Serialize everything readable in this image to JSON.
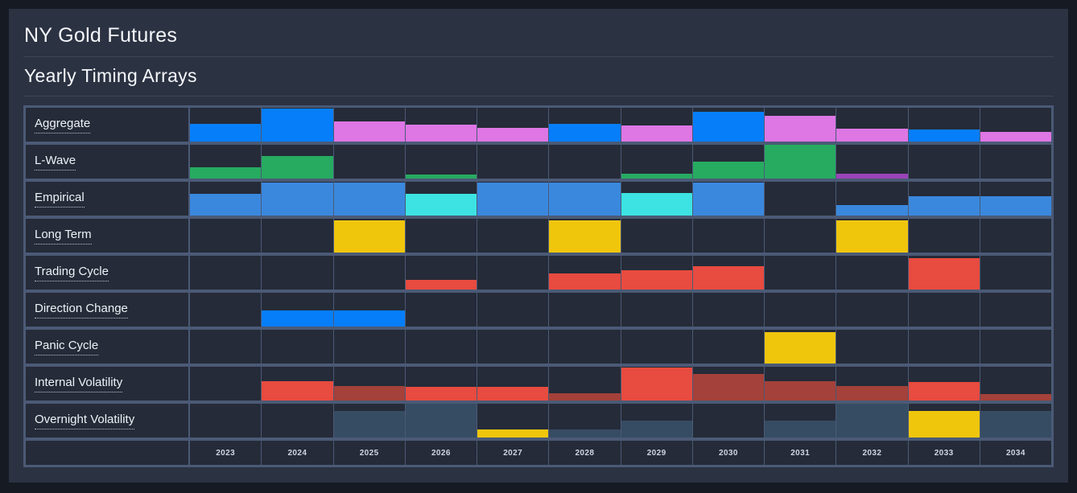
{
  "header": {
    "title": "NY Gold Futures",
    "subtitle": "Yearly Timing Arrays"
  },
  "chart_data": {
    "type": "heatmap",
    "title": "NY Gold Futures",
    "subtitle": "Yearly Timing Arrays",
    "x_categories": [
      "2023",
      "2024",
      "2025",
      "2026",
      "2027",
      "2028",
      "2029",
      "2030",
      "2031",
      "2032",
      "2033",
      "2034"
    ],
    "legend_position": "none",
    "grid": true,
    "bar_alignment": "bottom",
    "cell_format": [
      "color_key",
      "height_fraction_of_row"
    ],
    "colors": {
      "blue": "#077ef9",
      "medblue": "#3a88de",
      "cyan": "#3ce3e2",
      "green": "#27ab61",
      "violet": "#de76e4",
      "purple": "#9b44b8",
      "yellow": "#f0c60d",
      "red": "#e84b3f",
      "darkred": "#a4413a",
      "steel": "#364c63"
    },
    "rows": [
      {
        "id": "aggregate",
        "label": "Aggregate",
        "cells": [
          [
            "blue",
            0.52
          ],
          [
            "blue",
            0.97
          ],
          [
            "violet",
            0.6
          ],
          [
            "violet",
            0.5
          ],
          [
            "violet",
            0.4
          ],
          [
            "blue",
            0.52
          ],
          [
            "violet",
            0.48
          ],
          [
            "blue",
            0.87
          ],
          [
            "violet",
            0.76
          ],
          [
            "violet",
            0.38
          ],
          [
            "blue",
            0.36
          ],
          [
            "violet",
            0.28
          ]
        ]
      },
      {
        "id": "l-wave",
        "label": "L-Wave",
        "cells": [
          [
            "green",
            0.33
          ],
          [
            "green",
            0.67
          ],
          [
            null,
            0
          ],
          [
            "green",
            0.12
          ],
          [
            null,
            0
          ],
          [
            null,
            0
          ],
          [
            "green",
            0.15
          ],
          [
            "green",
            0.49
          ],
          [
            "green",
            1.0
          ],
          [
            "purple",
            0.14
          ],
          [
            null,
            0
          ],
          [
            null,
            0
          ]
        ]
      },
      {
        "id": "empirical",
        "label": "Empirical",
        "cells": [
          [
            "medblue",
            0.65
          ],
          [
            "medblue",
            0.97
          ],
          [
            "medblue",
            0.97
          ],
          [
            "cyan",
            0.65
          ],
          [
            "medblue",
            0.97
          ],
          [
            "medblue",
            0.97
          ],
          [
            "cyan",
            0.66
          ],
          [
            "medblue",
            0.97
          ],
          [
            null,
            0
          ],
          [
            "medblue",
            0.31
          ],
          [
            "medblue",
            0.57
          ],
          [
            "medblue",
            0.57
          ]
        ]
      },
      {
        "id": "long-term",
        "label": "Long Term",
        "cells": [
          [
            null,
            0
          ],
          [
            null,
            0
          ],
          [
            "yellow",
            0.95
          ],
          [
            null,
            0
          ],
          [
            null,
            0
          ],
          [
            "yellow",
            0.95
          ],
          [
            null,
            0
          ],
          [
            null,
            0
          ],
          [
            null,
            0
          ],
          [
            "yellow",
            0.95
          ],
          [
            null,
            0
          ],
          [
            null,
            0
          ]
        ]
      },
      {
        "id": "trading-cycle",
        "label": "Trading Cycle",
        "cells": [
          [
            null,
            0
          ],
          [
            null,
            0
          ],
          [
            null,
            0
          ],
          [
            "red",
            0.28
          ],
          [
            null,
            0
          ],
          [
            "red",
            0.48
          ],
          [
            "red",
            0.57
          ],
          [
            "red",
            0.7
          ],
          [
            null,
            0
          ],
          [
            null,
            0
          ],
          [
            "red",
            0.93
          ],
          [
            null,
            0
          ]
        ]
      },
      {
        "id": "direction-change",
        "label": "Direction Change",
        "cells": [
          [
            null,
            0
          ],
          [
            "blue",
            0.47
          ],
          [
            "blue",
            0.47
          ],
          [
            null,
            0
          ],
          [
            null,
            0
          ],
          [
            null,
            0
          ],
          [
            null,
            0
          ],
          [
            null,
            0
          ],
          [
            null,
            0
          ],
          [
            null,
            0
          ],
          [
            null,
            0
          ],
          [
            null,
            0
          ]
        ]
      },
      {
        "id": "panic-cycle",
        "label": "Panic Cycle",
        "cells": [
          [
            null,
            0
          ],
          [
            null,
            0
          ],
          [
            null,
            0
          ],
          [
            null,
            0
          ],
          [
            null,
            0
          ],
          [
            null,
            0
          ],
          [
            null,
            0
          ],
          [
            null,
            0
          ],
          [
            "yellow",
            0.92
          ],
          [
            null,
            0
          ],
          [
            null,
            0
          ],
          [
            null,
            0
          ]
        ]
      },
      {
        "id": "internal-volatility",
        "label": "Internal Volatility",
        "cells": [
          [
            null,
            0
          ],
          [
            "red",
            0.58
          ],
          [
            "darkred",
            0.42
          ],
          [
            "red",
            0.4
          ],
          [
            "red",
            0.4
          ],
          [
            "darkred",
            0.21
          ],
          [
            "red",
            0.97
          ],
          [
            "darkred",
            0.78
          ],
          [
            "darkred",
            0.57
          ],
          [
            "darkred",
            0.42
          ],
          [
            "red",
            0.55
          ],
          [
            "darkred",
            0.2
          ]
        ]
      },
      {
        "id": "overnight-volatility",
        "label": "Overnight Volatility",
        "cells": [
          [
            null,
            0
          ],
          [
            null,
            0
          ],
          [
            "steel",
            0.78
          ],
          [
            "steel",
            1.0
          ],
          [
            "yellow",
            0.25
          ],
          [
            "steel",
            0.25
          ],
          [
            "steel",
            0.5
          ],
          [
            null,
            0
          ],
          [
            "steel",
            0.5
          ],
          [
            "steel",
            1.0
          ],
          [
            "yellow",
            0.78
          ],
          [
            "steel",
            0.78
          ]
        ]
      }
    ]
  },
  "theme": {
    "page_bg": "#161a23",
    "card_bg": "#2b3242",
    "cell_bg": "#252b38",
    "frame": "#4b5a76",
    "divider": "#3d4556",
    "title_color": "#f5f7fa",
    "year_label_color": "#cfd6e2"
  }
}
